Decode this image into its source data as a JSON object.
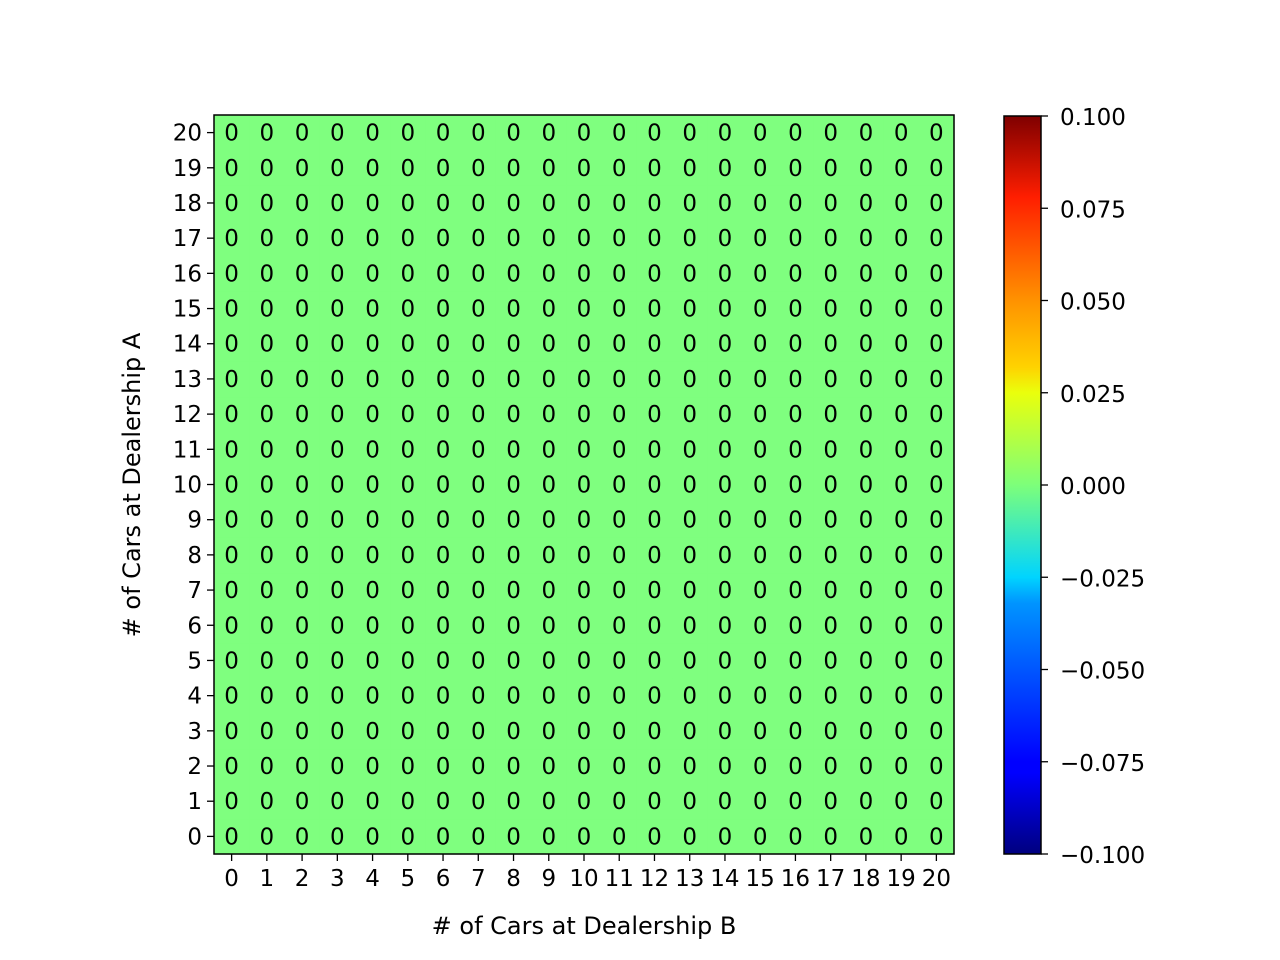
{
  "chart_data": {
    "type": "heatmap",
    "title": "",
    "xlabel": "# of Cars at Dealership B",
    "ylabel": "# of Cars at Dealership A",
    "x_categories": [
      "0",
      "1",
      "2",
      "3",
      "4",
      "5",
      "6",
      "7",
      "8",
      "9",
      "10",
      "11",
      "12",
      "13",
      "14",
      "15",
      "16",
      "17",
      "18",
      "19",
      "20"
    ],
    "y_categories": [
      "0",
      "1",
      "2",
      "3",
      "4",
      "5",
      "6",
      "7",
      "8",
      "9",
      "10",
      "11",
      "12",
      "13",
      "14",
      "15",
      "16",
      "17",
      "18",
      "19",
      "20"
    ],
    "values": [
      [
        0,
        0,
        0,
        0,
        0,
        0,
        0,
        0,
        0,
        0,
        0,
        0,
        0,
        0,
        0,
        0,
        0,
        0,
        0,
        0,
        0
      ],
      [
        0,
        0,
        0,
        0,
        0,
        0,
        0,
        0,
        0,
        0,
        0,
        0,
        0,
        0,
        0,
        0,
        0,
        0,
        0,
        0,
        0
      ],
      [
        0,
        0,
        0,
        0,
        0,
        0,
        0,
        0,
        0,
        0,
        0,
        0,
        0,
        0,
        0,
        0,
        0,
        0,
        0,
        0,
        0
      ],
      [
        0,
        0,
        0,
        0,
        0,
        0,
        0,
        0,
        0,
        0,
        0,
        0,
        0,
        0,
        0,
        0,
        0,
        0,
        0,
        0,
        0
      ],
      [
        0,
        0,
        0,
        0,
        0,
        0,
        0,
        0,
        0,
        0,
        0,
        0,
        0,
        0,
        0,
        0,
        0,
        0,
        0,
        0,
        0
      ],
      [
        0,
        0,
        0,
        0,
        0,
        0,
        0,
        0,
        0,
        0,
        0,
        0,
        0,
        0,
        0,
        0,
        0,
        0,
        0,
        0,
        0
      ],
      [
        0,
        0,
        0,
        0,
        0,
        0,
        0,
        0,
        0,
        0,
        0,
        0,
        0,
        0,
        0,
        0,
        0,
        0,
        0,
        0,
        0
      ],
      [
        0,
        0,
        0,
        0,
        0,
        0,
        0,
        0,
        0,
        0,
        0,
        0,
        0,
        0,
        0,
        0,
        0,
        0,
        0,
        0,
        0
      ],
      [
        0,
        0,
        0,
        0,
        0,
        0,
        0,
        0,
        0,
        0,
        0,
        0,
        0,
        0,
        0,
        0,
        0,
        0,
        0,
        0,
        0
      ],
      [
        0,
        0,
        0,
        0,
        0,
        0,
        0,
        0,
        0,
        0,
        0,
        0,
        0,
        0,
        0,
        0,
        0,
        0,
        0,
        0,
        0
      ],
      [
        0,
        0,
        0,
        0,
        0,
        0,
        0,
        0,
        0,
        0,
        0,
        0,
        0,
        0,
        0,
        0,
        0,
        0,
        0,
        0,
        0
      ],
      [
        0,
        0,
        0,
        0,
        0,
        0,
        0,
        0,
        0,
        0,
        0,
        0,
        0,
        0,
        0,
        0,
        0,
        0,
        0,
        0,
        0
      ],
      [
        0,
        0,
        0,
        0,
        0,
        0,
        0,
        0,
        0,
        0,
        0,
        0,
        0,
        0,
        0,
        0,
        0,
        0,
        0,
        0,
        0
      ],
      [
        0,
        0,
        0,
        0,
        0,
        0,
        0,
        0,
        0,
        0,
        0,
        0,
        0,
        0,
        0,
        0,
        0,
        0,
        0,
        0,
        0
      ],
      [
        0,
        0,
        0,
        0,
        0,
        0,
        0,
        0,
        0,
        0,
        0,
        0,
        0,
        0,
        0,
        0,
        0,
        0,
        0,
        0,
        0
      ],
      [
        0,
        0,
        0,
        0,
        0,
        0,
        0,
        0,
        0,
        0,
        0,
        0,
        0,
        0,
        0,
        0,
        0,
        0,
        0,
        0,
        0
      ],
      [
        0,
        0,
        0,
        0,
        0,
        0,
        0,
        0,
        0,
        0,
        0,
        0,
        0,
        0,
        0,
        0,
        0,
        0,
        0,
        0,
        0
      ],
      [
        0,
        0,
        0,
        0,
        0,
        0,
        0,
        0,
        0,
        0,
        0,
        0,
        0,
        0,
        0,
        0,
        0,
        0,
        0,
        0,
        0
      ],
      [
        0,
        0,
        0,
        0,
        0,
        0,
        0,
        0,
        0,
        0,
        0,
        0,
        0,
        0,
        0,
        0,
        0,
        0,
        0,
        0,
        0
      ],
      [
        0,
        0,
        0,
        0,
        0,
        0,
        0,
        0,
        0,
        0,
        0,
        0,
        0,
        0,
        0,
        0,
        0,
        0,
        0,
        0,
        0
      ],
      [
        0,
        0,
        0,
        0,
        0,
        0,
        0,
        0,
        0,
        0,
        0,
        0,
        0,
        0,
        0,
        0,
        0,
        0,
        0,
        0,
        0
      ]
    ],
    "y_order": "0 at bottom, 20 at top",
    "colormap": "jet",
    "vmin": -0.1,
    "vmax": 0.1,
    "cell_color": "#7fff7f",
    "colorbar": {
      "position": "right",
      "ticks": [
        "0.100",
        "0.075",
        "0.050",
        "0.025",
        "0.000",
        "−0.025",
        "−0.050",
        "−0.075",
        "−0.100"
      ],
      "tick_values": [
        0.1,
        0.075,
        0.05,
        0.025,
        0.0,
        -0.025,
        -0.05,
        -0.075,
        -0.1
      ]
    }
  }
}
